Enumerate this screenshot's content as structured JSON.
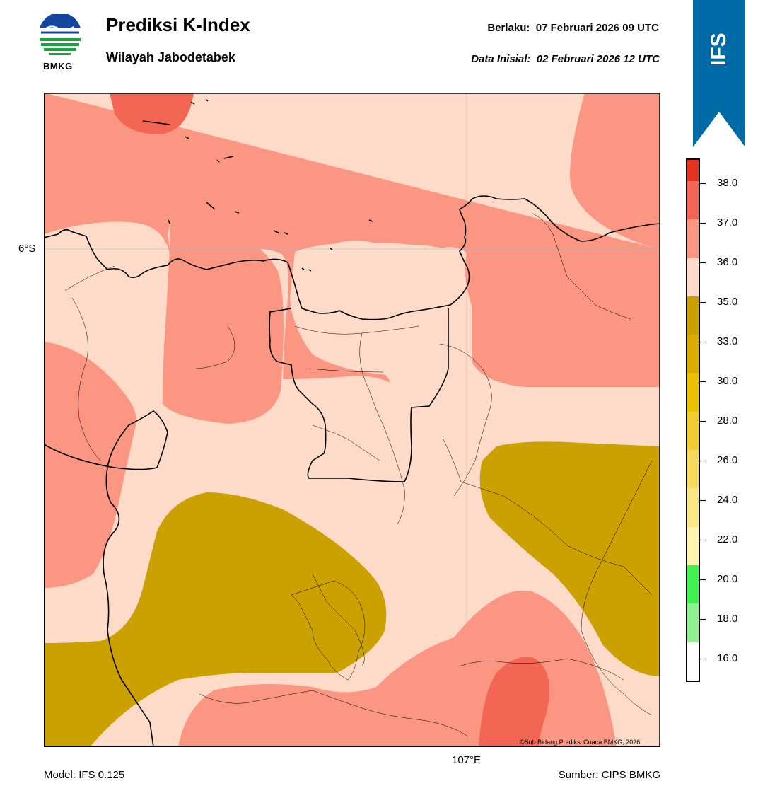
{
  "header": {
    "title": "Prediksi K-Index",
    "subtitle": "Wilayah Jabodetabek",
    "valid_label": "Berlaku:",
    "valid_time": "07 Februari 2026 09 UTC",
    "init_label": "Data Inisial:",
    "init_time": "02 Februari 2026 12 UTC"
  },
  "logo": {
    "text": "BMKG",
    "icon": "bmkg-logo-icon"
  },
  "ribbon": {
    "text": "IFS",
    "color": "#006aa7"
  },
  "map": {
    "lat_label": "6°S",
    "lon_label": "107°E",
    "copyright": "©Sub Bidang Prediksi Cuaca BMKG, 2026",
    "fill_colors": {
      "35_36": "#fddbc8",
      "36_37": "#fb9683",
      "37_38": "#f26653",
      "30_33": "#cba100"
    }
  },
  "colorbar": {
    "labels": [
      "38.0",
      "37.0",
      "36.0",
      "35.0",
      "33.0",
      "30.0",
      "28.0",
      "26.0",
      "24.0",
      "22.0",
      "20.0",
      "18.0",
      "16.0"
    ],
    "colors": [
      "#e5321e",
      "#f26653",
      "#fb9683",
      "#fddbc8",
      "#cba100",
      "#ddaa00",
      "#eec100",
      "#f2cd32",
      "#f7da5b",
      "#fbe686",
      "#fff3ad",
      "#3ff24d",
      "#8ff08f",
      "#ffffff"
    ]
  },
  "footer": {
    "model": "Model: IFS 0.125",
    "source": "Sumber: CIPS BMKG"
  }
}
